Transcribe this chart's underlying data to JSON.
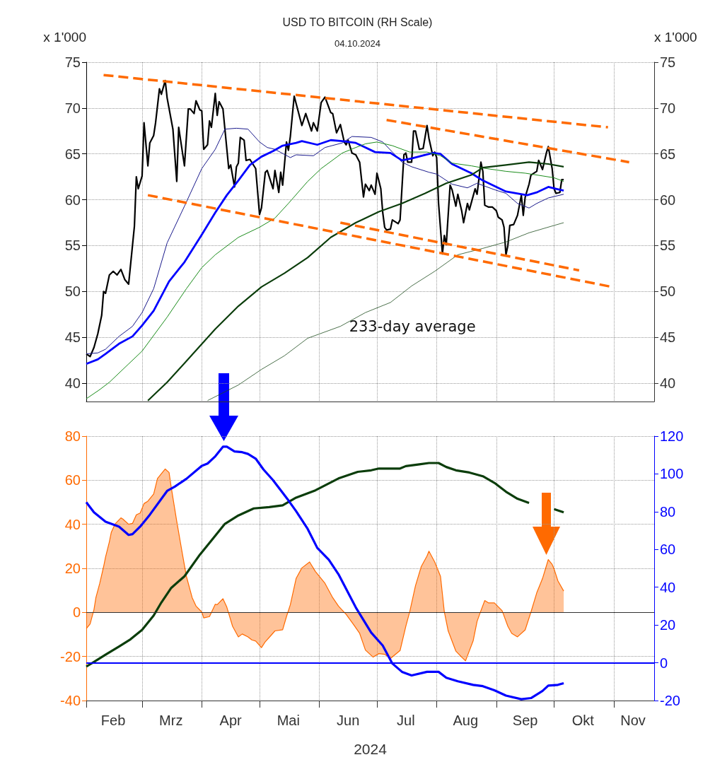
{
  "chart_data": [
    {
      "type": "line",
      "title": "USD TO BITCOIN (RH Scale)",
      "subtitle": "04.10.2024",
      "ylabel": "x 1'000",
      "y2label": "x 1'000",
      "xlim": [
        "2024-02-01",
        "2024-11-22"
      ],
      "xticks": [
        {
          "value": "2024-02-01",
          "label": null
        },
        {
          "value": "2024-03-01",
          "label": null
        },
        {
          "value": "2024-04-01",
          "label": null
        },
        {
          "value": "2024-05-01",
          "label": null
        },
        {
          "value": "2024-06-01",
          "label": null
        },
        {
          "value": "2024-07-01",
          "label": null
        },
        {
          "value": "2024-08-01",
          "label": null
        },
        {
          "value": "2024-09-01",
          "label": null
        },
        {
          "value": "2024-10-01",
          "label": null
        },
        {
          "value": "2024-11-01",
          "label": null
        }
      ],
      "ylim": [
        38,
        75
      ],
      "yticks": [
        40,
        45,
        50,
        55,
        60,
        65,
        70,
        75
      ],
      "y2lim": [
        38,
        75
      ],
      "y2ticks": [
        40,
        45,
        50,
        55,
        60,
        65,
        70,
        75
      ],
      "grid": true,
      "marker": "none",
      "tick_labels": "y",
      "annotations": [
        "233-day average"
      ],
      "series": [
        {
          "color": "#000000",
          "x": [
            "2024-02-01",
            "2024-02-03",
            "2024-02-05",
            "2024-02-07",
            "2024-02-09",
            "2024-02-10",
            "2024-02-11",
            "2024-02-13",
            "2024-02-15",
            "2024-02-17",
            "2024-02-19",
            "2024-02-21",
            "2024-02-23",
            "2024-02-25",
            "2024-02-26",
            "2024-02-27",
            "2024-02-28",
            "2024-03-01",
            "2024-03-02",
            "2024-03-04",
            "2024-03-05",
            "2024-03-07",
            "2024-03-08",
            "2024-03-10",
            "2024-03-11",
            "2024-03-13",
            "2024-03-14",
            "2024-03-17",
            "2024-03-19",
            "2024-03-20",
            "2024-03-23",
            "2024-03-25",
            "2024-03-26",
            "2024-03-28",
            "2024-03-29",
            "2024-03-31",
            "2024-04-01",
            "2024-04-02",
            "2024-04-04",
            "2024-04-05",
            "2024-04-06",
            "2024-04-08",
            "2024-04-09",
            "2024-04-10",
            "2024-04-12",
            "2024-04-15",
            "2024-04-16",
            "2024-04-18",
            "2024-04-19",
            "2024-04-20",
            "2024-04-21",
            "2024-04-23",
            "2024-04-24",
            "2024-04-26",
            "2024-04-29",
            "2024-05-01",
            "2024-05-02",
            "2024-05-04",
            "2024-05-05",
            "2024-05-08",
            "2024-05-09",
            "2024-05-11",
            "2024-05-12",
            "2024-05-13",
            "2024-05-15",
            "2024-05-16",
            "2024-05-17",
            "2024-05-19",
            "2024-05-23",
            "2024-05-25",
            "2024-05-28",
            "2024-05-29",
            "2024-05-31",
            "2024-06-02",
            "2024-06-04",
            "2024-06-07",
            "2024-06-08",
            "2024-06-10",
            "2024-06-12",
            "2024-06-14",
            "2024-06-15",
            "2024-06-16",
            "2024-06-18",
            "2024-06-20",
            "2024-06-22",
            "2024-06-24",
            "2024-06-25",
            "2024-06-27",
            "2024-06-28",
            "2024-06-30",
            "2024-07-01",
            "2024-07-03",
            "2024-07-04",
            "2024-07-05",
            "2024-07-06",
            "2024-07-08",
            "2024-07-09",
            "2024-07-12",
            "2024-07-13",
            "2024-07-15",
            "2024-07-16",
            "2024-07-17",
            "2024-07-19",
            "2024-07-20",
            "2024-07-21",
            "2024-07-23",
            "2024-07-25",
            "2024-07-27",
            "2024-07-28",
            "2024-07-30",
            "2024-07-31",
            "2024-08-01",
            "2024-08-02",
            "2024-08-04",
            "2024-08-05",
            "2024-08-06",
            "2024-08-08",
            "2024-08-09",
            "2024-08-11",
            "2024-08-12",
            "2024-08-14",
            "2024-08-15",
            "2024-08-17",
            "2024-08-18",
            "2024-08-21",
            "2024-08-22",
            "2024-08-24",
            "2024-08-25",
            "2024-08-26",
            "2024-08-28",
            "2024-08-30",
            "2024-09-01",
            "2024-09-02",
            "2024-09-04",
            "2024-09-05",
            "2024-09-06",
            "2024-09-07",
            "2024-09-08",
            "2024-09-10",
            "2024-09-11",
            "2024-09-12",
            "2024-09-14",
            "2024-09-15",
            "2024-09-16",
            "2024-09-18",
            "2024-09-19",
            "2024-09-22",
            "2024-09-23",
            "2024-09-25",
            "2024-09-27",
            "2024-09-28",
            "2024-09-30",
            "2024-10-01",
            "2024-10-02",
            "2024-10-04",
            "2024-10-05",
            "2024-10-06"
          ],
          "values": [
            43.2,
            42.9,
            43.9,
            45.4,
            47.4,
            50.0,
            49.8,
            51.8,
            52.2,
            51.8,
            52.4,
            51.3,
            50.8,
            55.0,
            57.1,
            62.5,
            61.2,
            62.6,
            68.4,
            63.7,
            66.2,
            67.0,
            68.4,
            72.1,
            71.5,
            73.0,
            71.1,
            67.7,
            62.0,
            67.9,
            63.7,
            69.9,
            69.9,
            69.4,
            70.8,
            69.8,
            69.7,
            65.5,
            66.0,
            68.6,
            67.9,
            71.6,
            69.2,
            70.7,
            69.9,
            63.4,
            63.8,
            61.4,
            63.6,
            64.0,
            66.8,
            66.5,
            64.3,
            64.4,
            63.4,
            58.4,
            59.1,
            63.0,
            63.2,
            61.2,
            63.2,
            60.8,
            63.0,
            61.6,
            66.3,
            65.4,
            66.9,
            71.3,
            68.1,
            69.4,
            67.5,
            68.4,
            67.5,
            70.6,
            71.2,
            69.5,
            69.4,
            67.3,
            68.2,
            66.3,
            66.0,
            66.5,
            65.1,
            64.9,
            64.1,
            60.3,
            61.7,
            61.0,
            61.6,
            60.6,
            62.9,
            61.2,
            58.6,
            57.0,
            56.7,
            56.8,
            57.8,
            57.4,
            57.8,
            64.9,
            65.1,
            64.1,
            64.1,
            67.5,
            67.5,
            65.5,
            65.6,
            68.1,
            66.7,
            64.8,
            65.2,
            64.6,
            59.6,
            54.1,
            56.1,
            55.1,
            61.6,
            61.1,
            59.3,
            60.6,
            58.8,
            57.5,
            59.6,
            58.9,
            61.2,
            60.6,
            64.1,
            63.1,
            59.4,
            59.2,
            59.2,
            58.8,
            58.1,
            57.8,
            57.0,
            54.0,
            55.0,
            57.2,
            57.3,
            57.8,
            58.3,
            60.5,
            58.3,
            60.3,
            61.7,
            62.7,
            63.1,
            64.3,
            63.3,
            65.1,
            65.8,
            63.4,
            61.2,
            60.7,
            60.8,
            62.2,
            62.2
          ]
        },
        {
          "color": "#1a1a8c",
          "x": [
            "2024-02-01",
            "2024-02-07",
            "2024-02-11",
            "2024-02-18",
            "2024-02-25",
            "2024-03-01",
            "2024-03-07",
            "2024-03-14",
            "2024-03-23",
            "2024-04-01",
            "2024-04-08",
            "2024-04-13",
            "2024-04-19",
            "2024-04-25",
            "2024-05-01",
            "2024-05-05",
            "2024-05-09",
            "2024-05-17",
            "2024-05-20",
            "2024-05-29",
            "2024-06-04",
            "2024-06-13",
            "2024-06-18",
            "2024-06-28",
            "2024-07-04",
            "2024-07-14",
            "2024-07-19",
            "2024-07-28",
            "2024-08-01",
            "2024-08-09",
            "2024-08-17",
            "2024-08-22",
            "2024-08-31",
            "2024-09-06",
            "2024-09-12",
            "2024-09-18",
            "2024-09-22",
            "2024-09-28",
            "2024-10-06"
          ],
          "values": [
            43.2,
            43.3,
            43.7,
            45.1,
            46.2,
            47.7,
            50.3,
            55.3,
            59.3,
            63.4,
            65.5,
            67.7,
            67.8,
            67.7,
            66.3,
            65.7,
            65.5,
            64.6,
            64.9,
            64.8,
            65.7,
            66.2,
            66.9,
            66.8,
            66.3,
            64.1,
            63.6,
            63.0,
            62.8,
            61.7,
            61.3,
            61.8,
            61.1,
            60.7,
            59.6,
            59.1,
            59.6,
            60.2,
            60.6
          ]
        },
        {
          "color": "#0000ff",
          "x": [
            "2024-02-01",
            "2024-02-07",
            "2024-02-11",
            "2024-02-18",
            "2024-02-25",
            "2024-03-01",
            "2024-03-07",
            "2024-03-15",
            "2024-03-23",
            "2024-04-01",
            "2024-04-08",
            "2024-04-14",
            "2024-04-20",
            "2024-04-26",
            "2024-05-02",
            "2024-05-08",
            "2024-05-13",
            "2024-05-20",
            "2024-05-23",
            "2024-05-31",
            "2024-06-07",
            "2024-06-13",
            "2024-06-20",
            "2024-06-30",
            "2024-07-08",
            "2024-07-14",
            "2024-07-19",
            "2024-07-30",
            "2024-08-03",
            "2024-08-09",
            "2024-08-19",
            "2024-08-25",
            "2024-09-06",
            "2024-09-17",
            "2024-09-22",
            "2024-09-28",
            "2024-10-02",
            "2024-10-06"
          ],
          "values": [
            42.1,
            42.6,
            43.2,
            44.3,
            45.1,
            46.3,
            47.9,
            51.1,
            53.2,
            56.2,
            58.6,
            60.5,
            62.1,
            63.8,
            64.7,
            65.3,
            65.9,
            66.2,
            66.4,
            66.0,
            66.5,
            66.4,
            66.2,
            65.2,
            65.1,
            64.3,
            64.5,
            65.1,
            65.0,
            63.9,
            62.9,
            62.1,
            60.9,
            60.5,
            60.8,
            61.4,
            61.2,
            61.0
          ]
        },
        {
          "color": "#1a8c1a",
          "x": [
            "2024-02-01",
            "2024-02-08",
            "2024-02-13",
            "2024-02-23",
            "2024-03-01",
            "2024-03-14",
            "2024-03-24",
            "2024-04-01",
            "2024-04-08",
            "2024-04-20",
            "2024-05-01",
            "2024-05-09",
            "2024-05-16",
            "2024-05-26",
            "2024-06-02",
            "2024-06-13",
            "2024-06-20",
            "2024-06-25",
            "2024-07-01",
            "2024-07-09",
            "2024-07-18",
            "2024-07-27",
            "2024-08-03",
            "2024-08-09",
            "2024-08-19",
            "2024-08-27",
            "2024-09-06",
            "2024-09-16",
            "2024-10-01",
            "2024-10-06"
          ],
          "values": [
            38.3,
            39.3,
            40.1,
            42.1,
            43.5,
            47.2,
            50.3,
            52.6,
            54.0,
            55.9,
            57.0,
            58.0,
            59.6,
            62.0,
            63.4,
            65.1,
            65.7,
            66.1,
            66.3,
            65.9,
            65.2,
            65.2,
            64.8,
            64.0,
            63.7,
            63.4,
            63.1,
            62.9,
            62.4,
            62.0
          ]
        },
        {
          "color": "#0b3d0b",
          "x": [
            "2024-03-04",
            "2024-03-14",
            "2024-03-27",
            "2024-04-08",
            "2024-04-20",
            "2024-05-02",
            "2024-05-14",
            "2024-05-26",
            "2024-06-07",
            "2024-06-20",
            "2024-07-02",
            "2024-07-14",
            "2024-07-26",
            "2024-08-06",
            "2024-08-19",
            "2024-08-25",
            "2024-09-06",
            "2024-09-18",
            "2024-09-28",
            "2024-10-06"
          ],
          "values": [
            38.1,
            40.1,
            43.1,
            45.9,
            48.4,
            50.5,
            52.0,
            53.7,
            55.9,
            57.5,
            58.7,
            59.6,
            60.7,
            61.8,
            62.7,
            63.5,
            63.8,
            64.1,
            63.9,
            63.6
          ]
        },
        {
          "color": "#1e4d1e",
          "x": [
            "2024-04-04",
            "2024-04-20",
            "2024-05-02",
            "2024-05-14",
            "2024-05-26",
            "2024-06-12",
            "2024-06-25",
            "2024-07-08",
            "2024-07-19",
            "2024-07-31",
            "2024-08-12",
            "2024-08-25",
            "2024-09-06",
            "2024-09-18",
            "2024-10-01",
            "2024-10-06"
          ],
          "values": [
            38.1,
            39.8,
            41.5,
            43.0,
            44.9,
            46.2,
            47.7,
            48.8,
            50.6,
            52.2,
            54.0,
            54.7,
            55.4,
            56.4,
            57.2,
            57.5
          ]
        },
        {
          "color": "#ff6a00",
          "line_style": "dashed",
          "x": [
            "2024-02-10",
            "2024-10-29"
          ],
          "values": [
            73.6,
            67.9
          ]
        },
        {
          "color": "#ff6a00",
          "line_style": "dashed",
          "x": [
            "2024-07-06",
            "2024-11-09"
          ],
          "values": [
            68.7,
            64.1
          ]
        },
        {
          "color": "#ff6a00",
          "line_style": "dashed",
          "x": [
            "2024-03-04",
            "2024-10-31"
          ],
          "values": [
            60.5,
            50.5
          ]
        },
        {
          "color": "#ff6a00",
          "line_style": "dashed",
          "x": [
            "2024-06-12",
            "2024-10-14"
          ],
          "values": [
            57.5,
            52.3
          ]
        }
      ]
    },
    {
      "type": "line",
      "xlabel": "2024",
      "xlim": [
        "2024-02-01",
        "2024-11-22"
      ],
      "xticks": [
        {
          "value": "2024-02-01",
          "label": null
        },
        {
          "value": "2024-03-01",
          "label": null
        },
        {
          "value": "2024-04-01",
          "label": null
        },
        {
          "value": "2024-05-01",
          "label": null
        },
        {
          "value": "2024-06-01",
          "label": null
        },
        {
          "value": "2024-07-01",
          "label": null
        },
        {
          "value": "2024-08-01",
          "label": null
        },
        {
          "value": "2024-09-01",
          "label": null
        },
        {
          "value": "2024-10-01",
          "label": null
        },
        {
          "value": "2024-11-01",
          "label": null
        },
        {
          "value": "2024-02-15",
          "label": "Feb"
        },
        {
          "value": "2024-03-16",
          "label": "Mrz"
        },
        {
          "value": "2024-04-16",
          "label": "Apr"
        },
        {
          "value": "2024-05-16",
          "label": "Mai"
        },
        {
          "value": "2024-06-16",
          "label": "Jun"
        },
        {
          "value": "2024-07-16",
          "label": "Jul"
        },
        {
          "value": "2024-08-16",
          "label": "Aug"
        },
        {
          "value": "2024-09-16",
          "label": "Sep"
        },
        {
          "value": "2024-10-16",
          "label": "Okt"
        },
        {
          "value": "2024-11-11",
          "label": "Nov"
        }
      ],
      "ylim": [
        -40,
        80
      ],
      "yticks": [
        -40,
        -20,
        0,
        20,
        40,
        60,
        80
      ],
      "y2lim": [
        -20,
        120
      ],
      "y2ticks": [
        -20,
        0,
        20,
        40,
        60,
        80,
        100,
        120
      ],
      "grid": true,
      "marker": "none",
      "ref_lines": [
        {
          "axis": "y",
          "value": 0,
          "color": "#333333"
        },
        {
          "axis": "y2",
          "value": 0,
          "color": "#0000ff"
        }
      ],
      "series": [
        {
          "type": "area",
          "color": "#ff6a00",
          "x": [
            "2024-02-01",
            "2024-02-03",
            "2024-02-05",
            "2024-02-06",
            "2024-02-08",
            "2024-02-10",
            "2024-02-11",
            "2024-02-13",
            "2024-02-14",
            "2024-02-16",
            "2024-02-19",
            "2024-02-20",
            "2024-02-23",
            "2024-02-25",
            "2024-02-27",
            "2024-02-29",
            "2024-03-02",
            "2024-03-04",
            "2024-03-07",
            "2024-03-09",
            "2024-03-13",
            "2024-03-15",
            "2024-03-16",
            "2024-03-19",
            "2024-03-22",
            "2024-03-24",
            "2024-03-27",
            "2024-03-29",
            "2024-04-01",
            "2024-04-02",
            "2024-04-05",
            "2024-04-08",
            "2024-04-09",
            "2024-04-12",
            "2024-04-14",
            "2024-04-17",
            "2024-04-20",
            "2024-04-22",
            "2024-04-25",
            "2024-04-27",
            "2024-04-29",
            "2024-05-02",
            "2024-05-04",
            "2024-05-07",
            "2024-05-09",
            "2024-05-13",
            "2024-05-15",
            "2024-05-17",
            "2024-05-20",
            "2024-05-23",
            "2024-05-27",
            "2024-05-30",
            "2024-06-04",
            "2024-06-08",
            "2024-06-11",
            "2024-06-15",
            "2024-06-19",
            "2024-06-22",
            "2024-06-25",
            "2024-06-29",
            "2024-07-02",
            "2024-07-05",
            "2024-07-08",
            "2024-07-13",
            "2024-07-16",
            "2024-07-18",
            "2024-07-21",
            "2024-07-24",
            "2024-07-27",
            "2024-07-28",
            "2024-07-31",
            "2024-08-03",
            "2024-08-05",
            "2024-08-07",
            "2024-08-11",
            "2024-08-14",
            "2024-08-16",
            "2024-08-20",
            "2024-08-22",
            "2024-08-24",
            "2024-08-26",
            "2024-08-28",
            "2024-08-31",
            "2024-09-04",
            "2024-09-07",
            "2024-09-09",
            "2024-09-12",
            "2024-09-16",
            "2024-09-19",
            "2024-09-22",
            "2024-09-25",
            "2024-09-28",
            "2024-09-30",
            "2024-10-01",
            "2024-10-03",
            "2024-10-06"
          ],
          "values": [
            -7.4,
            -5.2,
            1.3,
            6.7,
            13.2,
            20.8,
            25.1,
            32.1,
            36.4,
            40.2,
            42.9,
            42.4,
            40.0,
            40.4,
            44.3,
            45.1,
            49.4,
            50.5,
            53.7,
            60.8,
            65.1,
            63.5,
            57.5,
            41.3,
            26.2,
            16.4,
            6.7,
            2.9,
            0.2,
            -2.5,
            -1.9,
            3.7,
            3.5,
            6.2,
            2.4,
            -6.3,
            -11.1,
            -9.8,
            -11.1,
            -12.5,
            -13.0,
            -16.0,
            -13.3,
            -10.4,
            -8.4,
            -7.9,
            -1.9,
            3.5,
            15.4,
            20.2,
            22.9,
            18.6,
            13.2,
            6.7,
            2.9,
            -0.9,
            -5.7,
            -9.5,
            -17.1,
            -20.3,
            -18.7,
            -19.0,
            -20.9,
            -17.3,
            -6.3,
            0.2,
            12.1,
            20.8,
            25.6,
            27.8,
            22.9,
            16.4,
            0.2,
            -8.4,
            -17.6,
            -20.3,
            -22.0,
            -12.8,
            -4.1,
            0.8,
            5.4,
            4.3,
            4.3,
            0.8,
            -6.3,
            -9.5,
            -11.1,
            -7.9,
            0.2,
            8.9,
            15.4,
            24.0,
            21.8,
            19.7,
            14.3,
            9.7
          ]
        },
        {
          "color": "#0b3d0b",
          "x": [
            "2024-02-01",
            "2024-02-05",
            "2024-02-11",
            "2024-02-18",
            "2024-02-24",
            "2024-03-01",
            "2024-03-07",
            "2024-03-11",
            "2024-03-16",
            "2024-03-23",
            "2024-03-31",
            "2024-04-07",
            "2024-04-13",
            "2024-04-20",
            "2024-04-28",
            "2024-05-06",
            "2024-05-13",
            "2024-05-20",
            "2024-05-30",
            "2024-06-11",
            "2024-06-21",
            "2024-06-28",
            "2024-07-02",
            "2024-07-13",
            "2024-07-16",
            "2024-07-23",
            "2024-07-28",
            "2024-08-02",
            "2024-08-06",
            "2024-08-11",
            "2024-08-18",
            "2024-08-25",
            "2024-08-31",
            "2024-09-06",
            "2024-09-12",
            "2024-09-18",
            "2024-09-25",
            "2024-10-01",
            "2024-10-06"
          ],
          "values": [
            -24.6,
            -22.5,
            -19.2,
            -15.5,
            -12.2,
            -7.9,
            -1.4,
            4.5,
            11.0,
            16.4,
            26.2,
            33.7,
            40.2,
            44.0,
            47.2,
            47.8,
            48.6,
            52.1,
            55.4,
            60.8,
            63.8,
            64.5,
            65.3,
            65.3,
            66.4,
            67.2,
            67.8,
            67.8,
            66.0,
            64.5,
            63.5,
            61.8,
            58.8,
            54.8,
            51.6,
            49.7,
            null,
            46.9,
            45.4
          ]
        },
        {
          "color": "#0000ff",
          "axis": "y2",
          "x": [
            "2024-02-01",
            "2024-02-05",
            "2024-02-11",
            "2024-02-18",
            "2024-02-23",
            "2024-02-25",
            "2024-02-29",
            "2024-03-05",
            "2024-03-14",
            "2024-03-18",
            "2024-03-24",
            "2024-04-01",
            "2024-04-04",
            "2024-04-08",
            "2024-04-12",
            "2024-04-14",
            "2024-04-18",
            "2024-04-22",
            "2024-04-25",
            "2024-04-29",
            "2024-05-03",
            "2024-05-08",
            "2024-05-16",
            "2024-05-20",
            "2024-05-26",
            "2024-05-31",
            "2024-06-06",
            "2024-06-11",
            "2024-06-20",
            "2024-06-28",
            "2024-07-04",
            "2024-07-09",
            "2024-07-14",
            "2024-07-19",
            "2024-07-27",
            "2024-08-02",
            "2024-08-06",
            "2024-08-12",
            "2024-08-20",
            "2024-08-25",
            "2024-08-31",
            "2024-09-06",
            "2024-09-14",
            "2024-09-19",
            "2024-09-25",
            "2024-09-28",
            "2024-10-03",
            "2024-10-06"
          ],
          "values": [
            85.0,
            79.7,
            74.7,
            72.1,
            67.7,
            68.1,
            72.1,
            78.4,
            91.0,
            93.3,
            97.4,
            104.3,
            105.5,
            109.3,
            114.4,
            114.4,
            111.9,
            111.5,
            110.6,
            108.1,
            102.4,
            96.7,
            86.0,
            80.3,
            70.9,
            60.8,
            54.5,
            46.9,
            29.3,
            16.0,
            9.1,
            -0.4,
            -4.8,
            -6.7,
            -4.8,
            -4.8,
            -7.9,
            -9.8,
            -11.7,
            -12.4,
            -14.6,
            -17.4,
            -19.3,
            -18.7,
            -14.9,
            -12.1,
            -11.7,
            -10.8
          ]
        }
      ]
    }
  ]
}
